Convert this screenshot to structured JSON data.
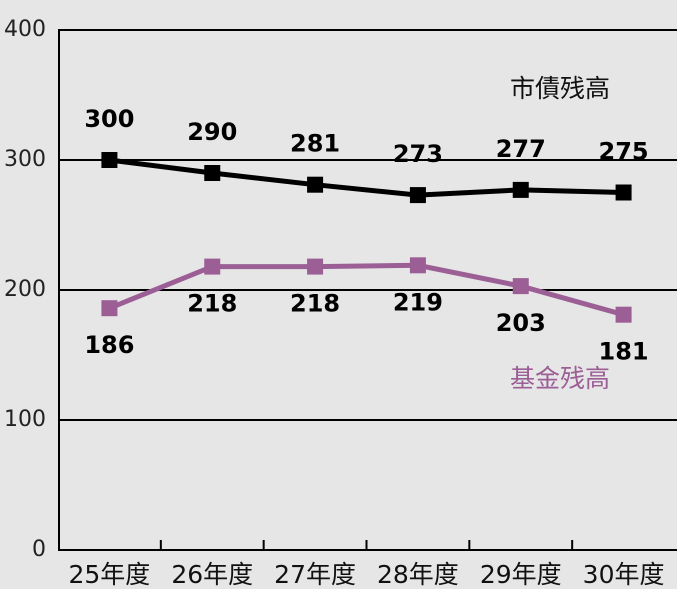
{
  "chart_data": {
    "type": "line",
    "categories": [
      "25年度",
      "26年度",
      "27年度",
      "28年度",
      "29年度",
      "30年度"
    ],
    "series": [
      {
        "name": "市債残高",
        "color": "#000000",
        "values": [
          300,
          290,
          281,
          273,
          277,
          275
        ]
      },
      {
        "name": "基金残高",
        "color": "#9b5f96",
        "values": [
          186,
          218,
          218,
          219,
          203,
          181
        ]
      }
    ],
    "ylim": [
      0,
      400
    ],
    "yticks": [
      0,
      100,
      200,
      300,
      400
    ],
    "grid": true
  }
}
